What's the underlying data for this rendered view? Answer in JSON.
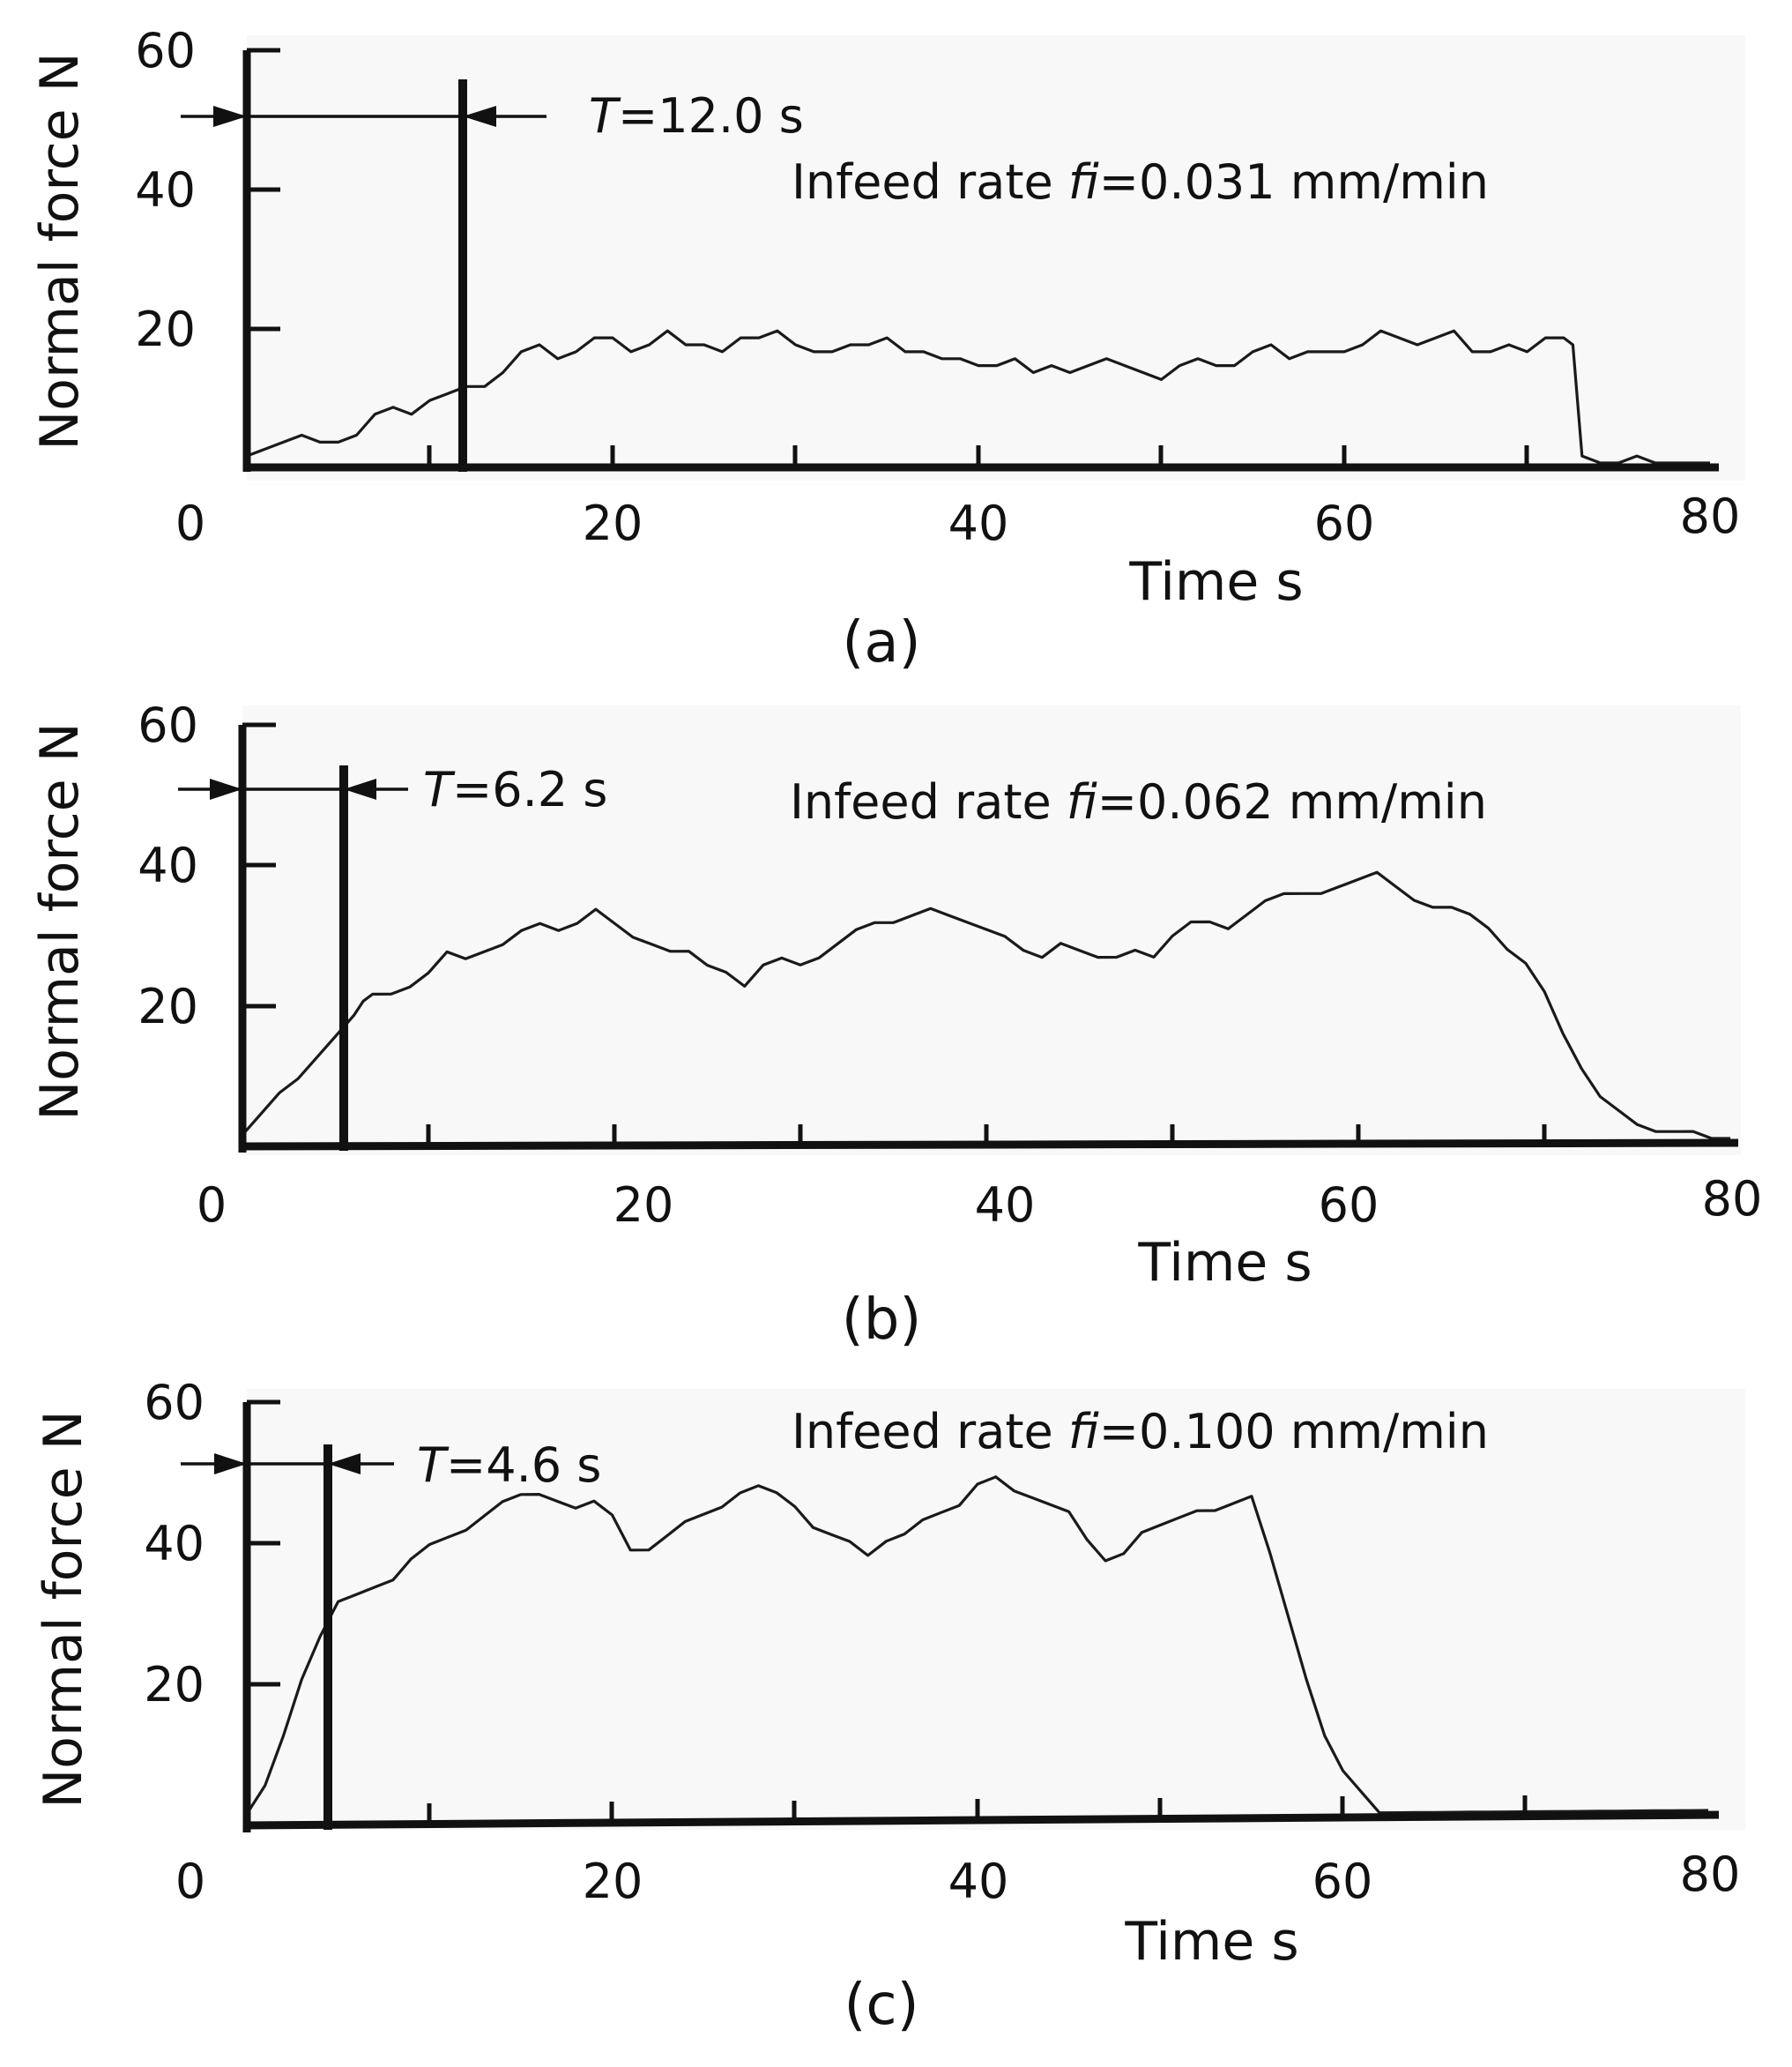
{
  "chart_data": [
    {
      "type": "line",
      "panel_label": "(a)",
      "xlabel": "Time s",
      "ylabel": "Normal force N",
      "xlim": [
        0,
        80
      ],
      "ylim": [
        0,
        60
      ],
      "x_ticks": [
        "0",
        "20",
        "40",
        "60",
        "80"
      ],
      "y_ticks": [
        "60",
        "40",
        "20"
      ],
      "annotation_time": {
        "prefix": "T",
        "value": "=12.0 s",
        "marker_x": 12.0
      },
      "infeed": {
        "prefix": "Infeed rate ",
        "symbol": "fi",
        "value": "=0.031 mm/min"
      },
      "series": [
        {
          "name": "Normal force",
          "x": [
            0,
            1,
            2,
            3,
            4,
            5,
            6,
            7,
            8,
            9,
            10,
            11,
            12,
            13,
            14,
            15,
            16,
            17,
            18,
            19,
            20,
            21,
            22,
            23,
            24,
            25,
            26,
            27,
            28,
            29,
            30,
            31,
            32,
            33,
            34,
            35,
            36,
            37,
            38,
            39,
            40,
            41,
            42,
            43,
            44,
            45,
            46,
            47,
            48,
            49,
            50,
            51,
            52,
            53,
            54,
            55,
            56,
            57,
            58,
            59,
            60,
            61,
            62,
            63,
            64,
            65,
            66,
            67,
            68,
            69,
            70,
            71,
            72,
            72.5,
            73,
            74,
            75,
            76,
            77,
            78,
            79,
            80
          ],
          "y": [
            1,
            2,
            3,
            4,
            3,
            3,
            4,
            7,
            8,
            7,
            9,
            10,
            11,
            11,
            13,
            16,
            17,
            15,
            16,
            18,
            18,
            16,
            17,
            19,
            17,
            17,
            16,
            18,
            18,
            19,
            17,
            16,
            16,
            17,
            17,
            18,
            16,
            16,
            15,
            15,
            14,
            14,
            15,
            13,
            14,
            13,
            14,
            15,
            14,
            13,
            12,
            14,
            15,
            14,
            14,
            16,
            17,
            15,
            16,
            16,
            16,
            17,
            19,
            18,
            17,
            18,
            19,
            16,
            16,
            17,
            16,
            18,
            18,
            17,
            1,
            0,
            0,
            1,
            0,
            0,
            0,
            0
          ]
        }
      ]
    },
    {
      "type": "line",
      "panel_label": "(b)",
      "xlabel": "Time s",
      "ylabel": "Normal force N",
      "xlim": [
        0,
        80
      ],
      "ylim": [
        0,
        60
      ],
      "x_ticks": [
        "0",
        "20",
        "40",
        "60",
        "80"
      ],
      "y_ticks": [
        "60",
        "40",
        "20"
      ],
      "annotation_time": {
        "prefix": "T",
        "value": "=6.2 s",
        "marker_x": 6.2
      },
      "infeed": {
        "prefix": "Infeed rate ",
        "symbol": "fi",
        "value": "=0.062 mm/min"
      },
      "series": [
        {
          "name": "Normal force",
          "x": [
            0,
            1,
            2,
            3,
            4,
            5,
            6,
            6.5,
            7,
            8,
            9,
            10,
            11,
            12,
            13,
            14,
            15,
            16,
            17,
            18,
            19,
            20,
            21,
            22,
            23,
            24,
            25,
            26,
            27,
            28,
            29,
            30,
            31,
            32,
            33,
            34,
            35,
            36,
            37,
            38,
            39,
            40,
            41,
            42,
            43,
            44,
            45,
            46,
            47,
            48,
            49,
            50,
            51,
            52,
            53,
            54,
            55,
            56,
            57,
            58,
            59,
            60,
            61,
            62,
            63,
            64,
            65,
            66,
            67,
            68,
            69,
            70,
            71,
            72,
            73,
            74,
            75,
            76,
            77,
            78,
            79,
            80
          ],
          "y": [
            1,
            4,
            7,
            9,
            12,
            15,
            18,
            20,
            21,
            21,
            22,
            24,
            27,
            26,
            27,
            28,
            30,
            31,
            30,
            31,
            33,
            31,
            29,
            28,
            27,
            27,
            25,
            24,
            22,
            25,
            26,
            25,
            26,
            28,
            30,
            31,
            31,
            32,
            33,
            32,
            31,
            30,
            29,
            27,
            26,
            28,
            27,
            26,
            26,
            27,
            26,
            29,
            31,
            31,
            30,
            32,
            34,
            35,
            35,
            35,
            36,
            37,
            38,
            36,
            34,
            33,
            33,
            32,
            30,
            27,
            25,
            21,
            15,
            10,
            6,
            4,
            2,
            1,
            1,
            1,
            0,
            0
          ]
        }
      ]
    },
    {
      "type": "line",
      "panel_label": "(c)",
      "xlabel": "Time s",
      "ylabel": "Normal force N",
      "xlim": [
        0,
        80
      ],
      "ylim": [
        0,
        60
      ],
      "x_ticks": [
        "0",
        "20",
        "40",
        "60",
        "80"
      ],
      "y_ticks": [
        "60",
        "40",
        "20"
      ],
      "annotation_time": {
        "prefix": "T",
        "value": "=4.6 s",
        "marker_x": 4.6
      },
      "infeed": {
        "prefix": "Infeed rate ",
        "symbol": "fi",
        "value": "=0.100 mm/min"
      },
      "series": [
        {
          "name": "Normal force",
          "x": [
            0,
            1,
            2,
            3,
            4,
            5,
            6,
            7,
            8,
            9,
            10,
            11,
            12,
            13,
            14,
            15,
            16,
            17,
            18,
            19,
            20,
            21,
            22,
            23,
            24,
            25,
            26,
            27,
            28,
            29,
            30,
            31,
            32,
            33,
            34,
            35,
            36,
            37,
            38,
            39,
            40,
            41,
            42,
            43,
            44,
            45,
            46,
            47,
            48,
            49,
            50,
            51,
            52,
            53,
            54,
            55,
            56,
            57,
            58,
            59,
            60,
            61,
            62,
            63,
            64,
            65,
            66,
            67,
            68,
            69,
            70,
            71,
            72,
            73,
            74,
            75,
            76,
            77,
            78,
            79,
            80
          ],
          "y": [
            1,
            5,
            12,
            20,
            26,
            31,
            32,
            33,
            34,
            37,
            39,
            40,
            41,
            43,
            45,
            46,
            46,
            45,
            44,
            45,
            43,
            38,
            38,
            40,
            42,
            43,
            44,
            46,
            47,
            46,
            44,
            41,
            40,
            39,
            37,
            39,
            40,
            42,
            43,
            44,
            47,
            48,
            46,
            45,
            44,
            43,
            39,
            36,
            37,
            40,
            41,
            42,
            43,
            43,
            44,
            45,
            37,
            28,
            19,
            11,
            6,
            3,
            0,
            0,
            0,
            0,
            0,
            0,
            0,
            0,
            0,
            0,
            0,
            0,
            0,
            0,
            0,
            0,
            0,
            0,
            0
          ]
        }
      ]
    }
  ]
}
